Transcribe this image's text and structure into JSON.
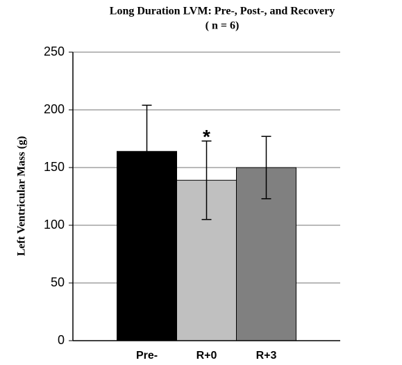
{
  "chart_data": {
    "type": "bar",
    "title": [
      "Long Duration LVM: Pre-, Post-, and Recovery",
      "( n = 6)"
    ],
    "y_label": "Left Ventricular Mass (g)",
    "categories": [
      "Pre-",
      "R+0",
      "R+3"
    ],
    "values": [
      164,
      139,
      150
    ],
    "errors": [
      40,
      34,
      27
    ],
    "colors": [
      "#000000",
      "#c0c0c0",
      "#808080"
    ],
    "annotations": [
      {
        "text": "*",
        "x": "R+0"
      }
    ],
    "ylim": [
      0,
      250
    ],
    "yticks": [
      0,
      50,
      100,
      150,
      200,
      250
    ],
    "grid": true
  }
}
